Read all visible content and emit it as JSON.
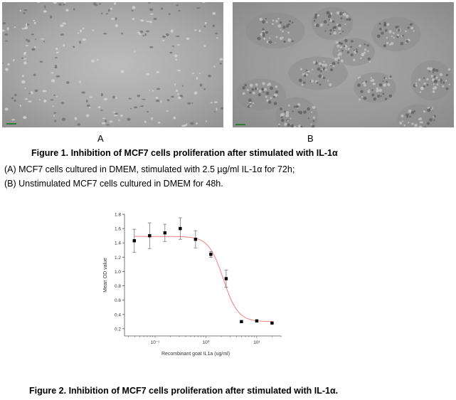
{
  "figure1": {
    "panel_a_label": "A",
    "panel_b_label": "B",
    "title": "Figure 1. Inhibition of MCF7 cells proliferation after stimulated with IL-1α",
    "caption_a": "(A) MCF7 cells cultured in DMEM, stimulated with 2.5 µg/ml IL-1α for 72h;",
    "caption_b": "(B) Unstimulated MCF7 cells cultured in DMEM for 48h."
  },
  "figure2": {
    "title": "Figure 2. Inhibition of MCF7 cells proliferation after stimulated with IL-1α."
  },
  "chart_data": {
    "type": "scatter",
    "xlabel": "Recombinant goat IL1a (ug/ml)",
    "ylabel": "Mean OD value",
    "xscale": "log",
    "xlim": [
      0.025,
      30
    ],
    "ylim": [
      0.1,
      1.8
    ],
    "x_tick_values": [
      0.1,
      1,
      10
    ],
    "x_tick_labels": [
      "10⁻¹",
      "10⁰",
      "10¹"
    ],
    "y_ticks": [
      "0.2",
      "0.4",
      "0.6",
      "0.8",
      "1.0",
      "1.2",
      "1.4",
      "1.6",
      "1.8"
    ],
    "series": [
      {
        "x": [
          0.039,
          0.078,
          0.156,
          0.3125,
          0.625,
          1.25,
          2.5,
          5,
          10,
          20
        ],
        "y": [
          1.43,
          1.5,
          1.54,
          1.6,
          1.45,
          1.24,
          0.9,
          0.3,
          0.31,
          0.28
        ],
        "err": [
          0.16,
          0.18,
          0.12,
          0.15,
          0.12,
          0.04,
          0.12,
          0.01,
          0.01,
          0.01
        ]
      }
    ],
    "fit_curve": {
      "top": 1.49,
      "bottom": 0.3,
      "ec50": 2.2,
      "hill": 3.0,
      "color": "#f08080"
    },
    "marker_color": "#000000",
    "grid": false,
    "legend": "none"
  }
}
